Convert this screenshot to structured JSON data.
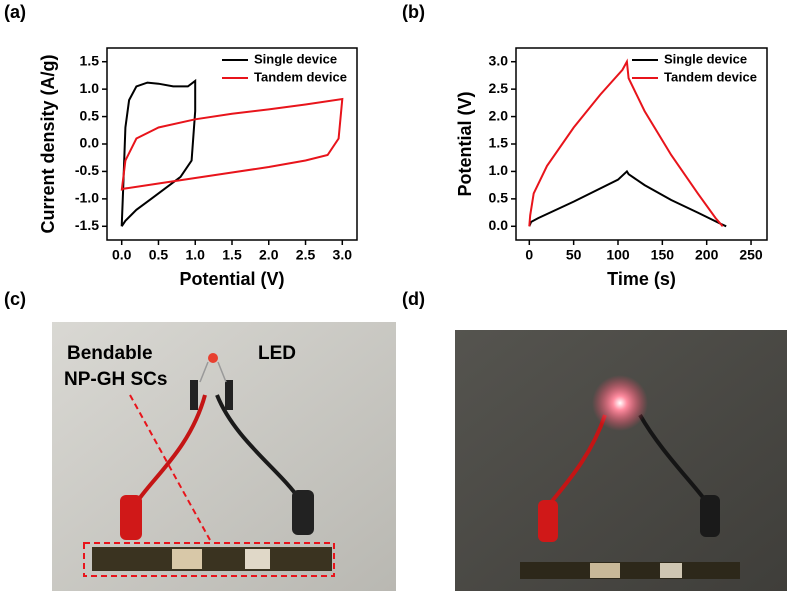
{
  "panel_labels": [
    "(a)",
    "(b)",
    "(c)",
    "(d)"
  ],
  "photo_c": {
    "labels": [
      "Bendable",
      "NP-GH SCs",
      "LED"
    ]
  },
  "chart_data": [
    {
      "type": "line",
      "xlabel": "Potential (V)",
      "ylabel": "Current density (A/g)",
      "xlim": [
        -0.2,
        3.2
      ],
      "ylim": [
        -1.75,
        1.75
      ],
      "xticks": [
        {
          "value": 0,
          "label": "0.0"
        },
        0.5,
        {
          "value": 1,
          "label": "1.0"
        },
        1.5,
        {
          "value": 2,
          "label": "2.0"
        },
        2.5,
        {
          "value": 3,
          "label": "3.0"
        }
      ],
      "yticks": [
        -1.5,
        {
          "value": -1,
          "label": "-1.0"
        },
        -0.5,
        {
          "value": 0,
          "label": "0.0"
        },
        0.5,
        {
          "value": 1,
          "label": "1.0"
        },
        1.5
      ],
      "legend": "upper right",
      "series": [
        {
          "name": "Single device",
          "color": "#000000",
          "x": [
            0,
            0.02,
            0.05,
            0.1,
            0.2,
            0.35,
            0.5,
            0.7,
            0.9,
            1.0,
            1.0,
            0.95,
            0.8,
            0.6,
            0.4,
            0.2,
            0.05,
            0
          ],
          "values": [
            -1.5,
            -0.8,
            0.3,
            0.8,
            1.05,
            1.12,
            1.1,
            1.05,
            1.05,
            1.15,
            0.6,
            -0.3,
            -0.6,
            -0.8,
            -1.0,
            -1.2,
            -1.4,
            -1.5
          ]
        },
        {
          "name": "Tandem device",
          "color": "#e8141b",
          "x": [
            0,
            0.05,
            0.2,
            0.5,
            1,
            1.5,
            2,
            2.5,
            3.0,
            2.95,
            2.8,
            2.5,
            2,
            1.5,
            1,
            0.5,
            0
          ],
          "values": [
            -0.85,
            -0.3,
            0.1,
            0.3,
            0.45,
            0.55,
            0.63,
            0.72,
            0.82,
            0.1,
            -0.2,
            -0.3,
            -0.42,
            -0.52,
            -0.62,
            -0.72,
            -0.82
          ]
        }
      ]
    },
    {
      "type": "line",
      "xlabel": "Time (s)",
      "ylabel": "Potential (V)",
      "xlim": [
        -15,
        268
      ],
      "ylim": [
        -0.25,
        3.25
      ],
      "xticks": [
        0,
        50,
        100,
        150,
        200,
        250
      ],
      "yticks": [
        {
          "value": 0,
          "label": "0.0"
        },
        0.5,
        {
          "value": 1,
          "label": "1.0"
        },
        1.5,
        {
          "value": 2,
          "label": "2.0"
        },
        2.5,
        {
          "value": 3,
          "label": "3.0"
        }
      ],
      "legend": "upper right",
      "series": [
        {
          "name": "Single device",
          "color": "#000000",
          "x": [
            0,
            2,
            10,
            50,
            100,
            110,
            112,
            130,
            160,
            190,
            215,
            222
          ],
          "values": [
            0,
            0.08,
            0.15,
            0.45,
            0.85,
            1.0,
            0.95,
            0.75,
            0.48,
            0.25,
            0.05,
            0
          ]
        },
        {
          "name": "Tandem device",
          "color": "#e8141b",
          "x": [
            0,
            1,
            5,
            20,
            50,
            80,
            105,
            110,
            112,
            130,
            160,
            190,
            210,
            218
          ],
          "values": [
            0,
            0.2,
            0.6,
            1.1,
            1.8,
            2.4,
            2.85,
            3.0,
            2.7,
            2.1,
            1.3,
            0.6,
            0.15,
            0
          ]
        }
      ]
    }
  ]
}
